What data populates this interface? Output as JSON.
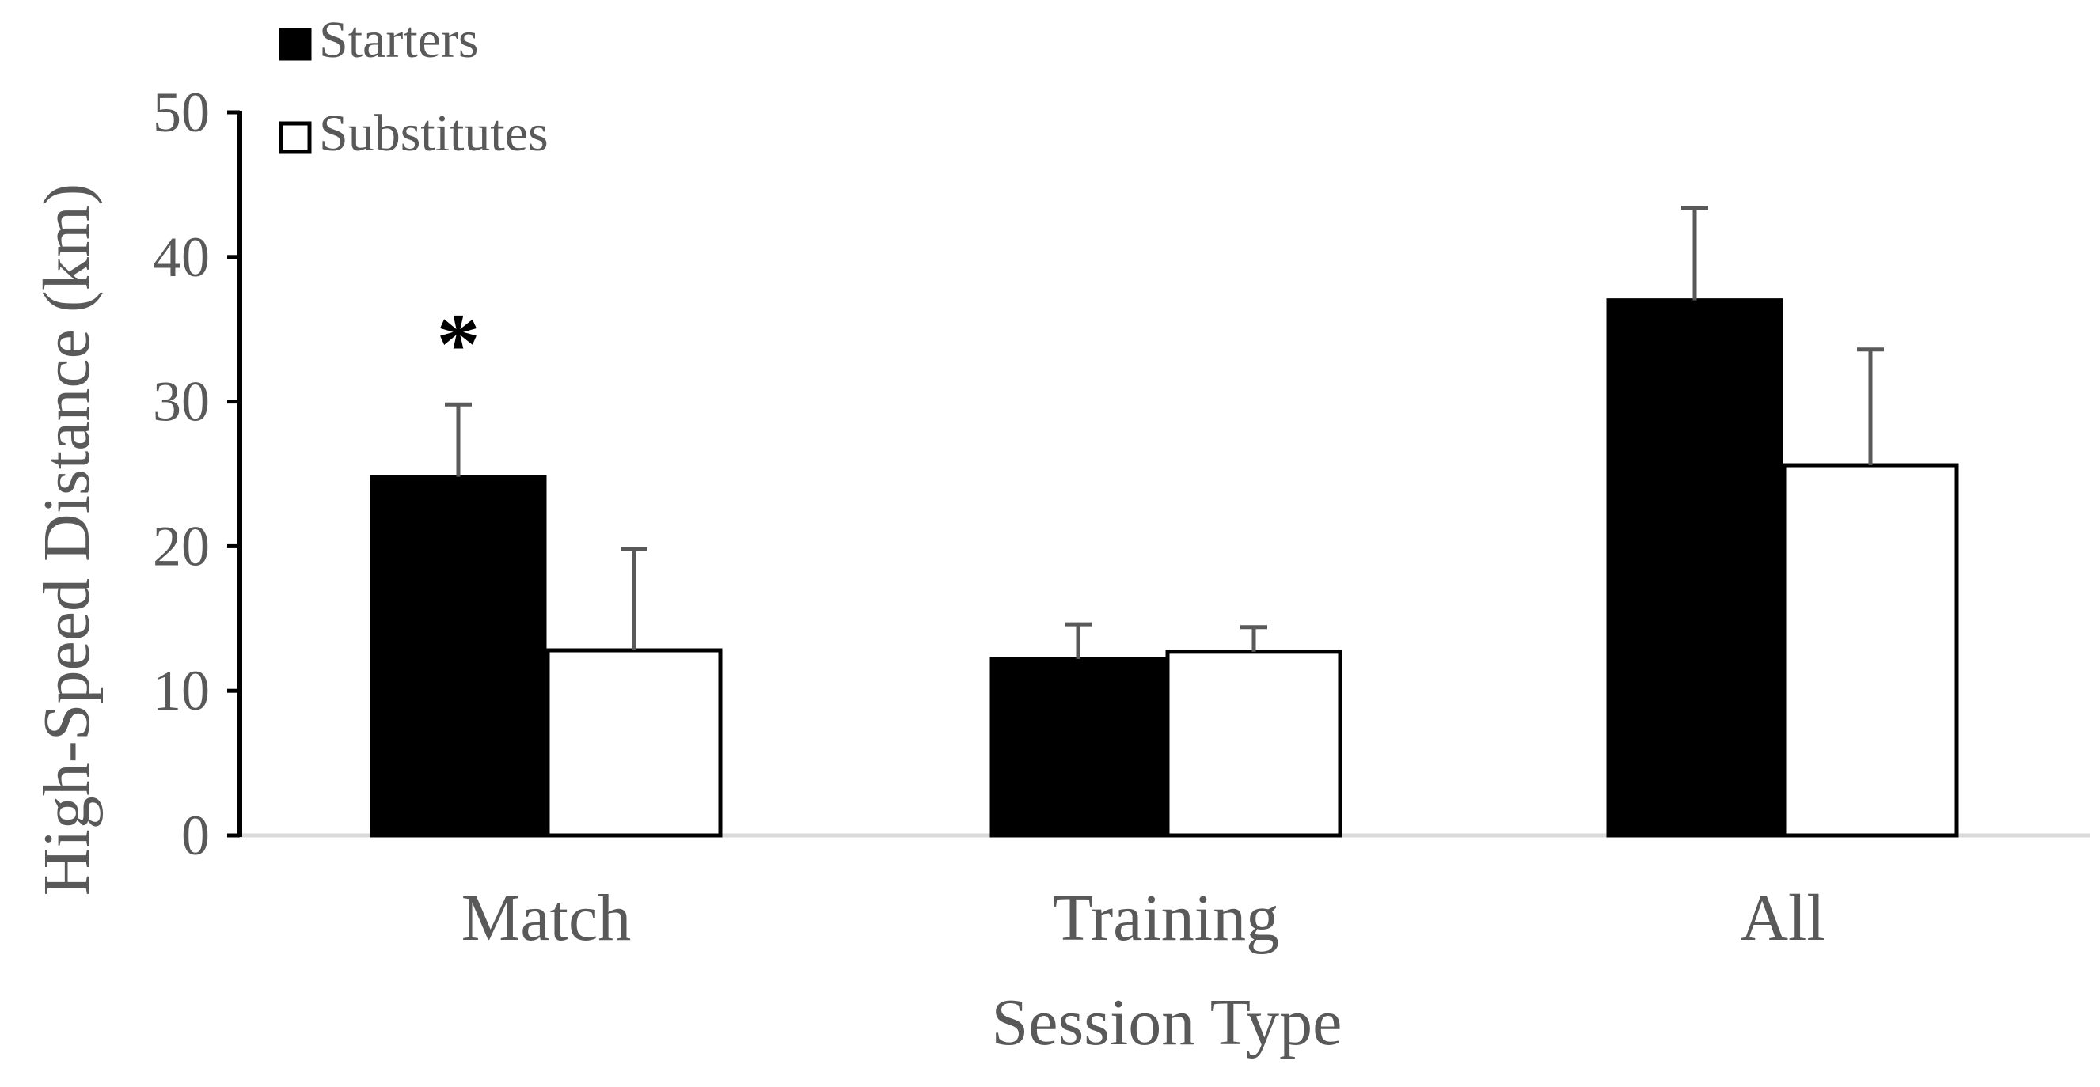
{
  "chart_data": {
    "type": "bar",
    "title": "",
    "xlabel": "Session Type",
    "ylabel": "High-Speed  Distance (km)",
    "ylim": [
      0,
      50
    ],
    "yticks": [
      0,
      10,
      20,
      30,
      40,
      50
    ],
    "categories": [
      "Match",
      "Training",
      "All"
    ],
    "series": [
      {
        "name": "Starters",
        "values": [
          24.8,
          12.2,
          37.0
        ],
        "errors": [
          5.0,
          2.4,
          6.4
        ],
        "fill": "#000000"
      },
      {
        "name": "Substitutes",
        "values": [
          12.8,
          12.7,
          25.6
        ],
        "errors": [
          7.0,
          1.7,
          8.0
        ],
        "fill": "#ffffff"
      }
    ],
    "annotations": [
      {
        "text": "*",
        "category": "Match",
        "series": "Starters"
      }
    ],
    "legend_position": "top-left",
    "colors": {
      "text": "#595959",
      "axis": "#000000",
      "error_bar": "#595959",
      "baseline": "#d9d9d9"
    }
  }
}
